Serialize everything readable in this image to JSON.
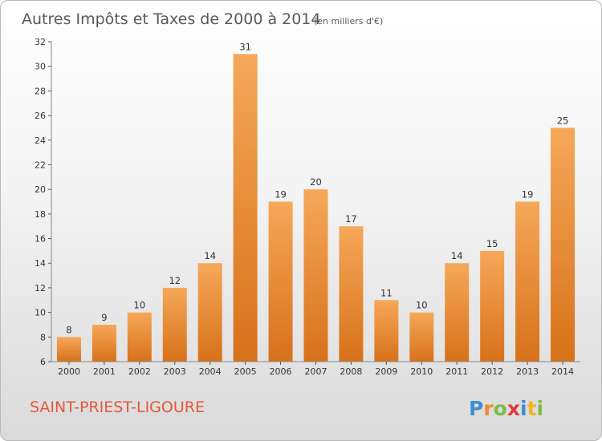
{
  "header": {
    "title": "Autres Impôts et Taxes de 2000 à 2014",
    "unit": "(en milliers d'€)"
  },
  "commune": "SAINT-PRIEST-LIGOURE",
  "logo": {
    "letters": [
      "P",
      "r",
      "o",
      "x",
      "i",
      "t",
      "i"
    ],
    "colors": [
      "#3d8fd1",
      "#f08a2c",
      "#7cbc42",
      "#e23a3a",
      "#3d8fd1",
      "#f0b51e",
      "#7cbc42"
    ]
  },
  "colors": {
    "bar_light": "#f5a859",
    "bar_dark": "#d8711a",
    "axis": "#888888",
    "grid_tick": "#555555"
  },
  "chart_data": {
    "type": "bar",
    "title": "Autres Impôts et Taxes de 2000 à 2014",
    "subtitle": "(en milliers d'€)",
    "categories": [
      "2000",
      "2001",
      "2002",
      "2003",
      "2004",
      "2005",
      "2006",
      "2007",
      "2008",
      "2009",
      "2010",
      "2011",
      "2012",
      "2013",
      "2014"
    ],
    "values": [
      8,
      9,
      10,
      12,
      14,
      31,
      19,
      20,
      17,
      11,
      10,
      14,
      15,
      19,
      25
    ],
    "ylim": [
      6,
      32
    ],
    "yticks": [
      6,
      8,
      10,
      12,
      14,
      16,
      18,
      20,
      22,
      24,
      26,
      28,
      30,
      32
    ],
    "grid": false,
    "legend": "none"
  }
}
